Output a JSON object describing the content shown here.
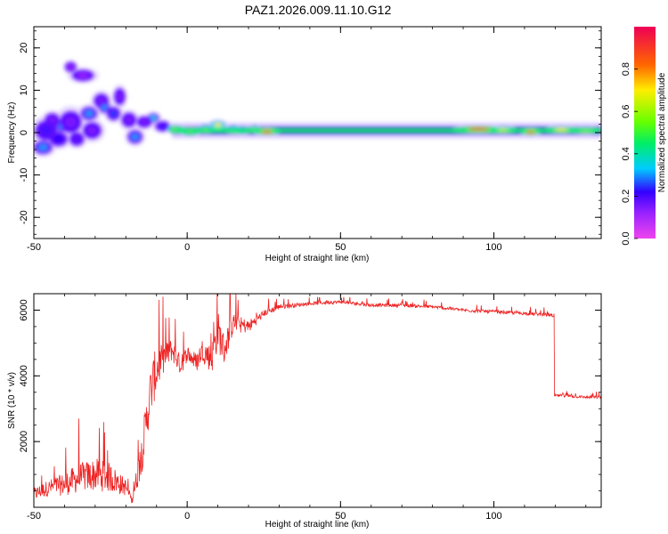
{
  "title": "PAZ1.2026.009.11.10.G12",
  "chart_data": [
    {
      "type": "heatmap",
      "xlabel": "Height of straight line (km)",
      "ylabel": "Frequency (Hz)",
      "xlim": [
        -50,
        135
      ],
      "ylim": [
        -25,
        25
      ],
      "xticks": [
        -50,
        0,
        50,
        100
      ],
      "yticks": [
        20,
        10,
        0,
        -10,
        -20
      ],
      "colorbar": {
        "label": "Normalized spectral amplitude",
        "range": [
          0,
          1
        ],
        "ticks": [
          "0.0",
          "0.2",
          "0.4",
          "0.6",
          "0.8"
        ],
        "colors": [
          "#ee44ee",
          "#5500ff",
          "#00ccff",
          "#00ee66",
          "#aaff00",
          "#ffee00",
          "#ff5500",
          "#ee0055"
        ]
      },
      "blobs": [
        {
          "x": -47,
          "y": -3.5,
          "rx": 2.5,
          "ry": 1.2,
          "a": 0.3
        },
        {
          "x": -46,
          "y": 0.5,
          "rx": 3,
          "ry": 1.8,
          "a": 0.2
        },
        {
          "x": -44,
          "y": 3,
          "rx": 2,
          "ry": 1.2,
          "a": 0.15
        },
        {
          "x": -42,
          "y": -1.5,
          "rx": 2.5,
          "ry": 1.3,
          "a": 0.22
        },
        {
          "x": -41,
          "y": 1.5,
          "rx": 1.5,
          "ry": 1,
          "a": 0.3
        },
        {
          "x": -38,
          "y": 15.5,
          "rx": 1.5,
          "ry": 0.9,
          "a": 0.12
        },
        {
          "x": -34,
          "y": 13.5,
          "rx": 3,
          "ry": 1,
          "a": 0.12
        },
        {
          "x": -38,
          "y": 2.5,
          "rx": 3,
          "ry": 2,
          "a": 0.15
        },
        {
          "x": -36,
          "y": -1.5,
          "rx": 2,
          "ry": 1.2,
          "a": 0.18
        },
        {
          "x": -32,
          "y": 4.5,
          "rx": 2.2,
          "ry": 1.2,
          "a": 0.3
        },
        {
          "x": -31,
          "y": 0.5,
          "rx": 2.5,
          "ry": 1.5,
          "a": 0.15
        },
        {
          "x": -28,
          "y": 7.5,
          "rx": 2,
          "ry": 1.3,
          "a": 0.15
        },
        {
          "x": -27,
          "y": 6,
          "rx": 1.5,
          "ry": 1,
          "a": 0.3
        },
        {
          "x": -24,
          "y": 4.5,
          "rx": 1.8,
          "ry": 1.2,
          "a": 0.25
        },
        {
          "x": -22,
          "y": 8.5,
          "rx": 1.5,
          "ry": 1.5,
          "a": 0.15
        },
        {
          "x": -19,
          "y": 3,
          "rx": 2,
          "ry": 1.3,
          "a": 0.15
        },
        {
          "x": -17,
          "y": -1,
          "rx": 2,
          "ry": 1.2,
          "a": 0.3
        },
        {
          "x": -14,
          "y": 2.5,
          "rx": 2,
          "ry": 1,
          "a": 0.15
        },
        {
          "x": -11,
          "y": 3.5,
          "rx": 1.5,
          "ry": 0.8,
          "a": 0.35
        },
        {
          "x": -8,
          "y": 1.5,
          "rx": 2,
          "ry": 0.9,
          "a": 0.2
        },
        {
          "x": -4,
          "y": 0.8,
          "rx": 2,
          "ry": 0.6,
          "a": 0.8
        },
        {
          "x": 1,
          "y": 0.2,
          "rx": 2,
          "ry": 0.6,
          "a": 0.8
        },
        {
          "x": 6,
          "y": 1,
          "rx": 1.5,
          "ry": 0.6,
          "a": 0.6
        },
        {
          "x": 10,
          "y": 1.8,
          "rx": 2,
          "ry": 0.7,
          "a": 0.7
        },
        {
          "x": 15,
          "y": 0.8,
          "rx": 1.5,
          "ry": 0.6,
          "a": 0.6
        },
        {
          "x": 18,
          "y": 0.6,
          "rx": 1.5,
          "ry": 0.6,
          "a": 0.5
        },
        {
          "x": 22,
          "y": 1,
          "rx": 1,
          "ry": 0.5,
          "a": 0.6
        },
        {
          "x": 26,
          "y": 0.2,
          "rx": 2.5,
          "ry": 0.5,
          "a": 0.9
        },
        {
          "x": 95,
          "y": 0.8,
          "rx": 5,
          "ry": 0.5,
          "a": 0.95
        },
        {
          "x": 103,
          "y": 0.8,
          "rx": 2.5,
          "ry": 0.5,
          "a": 0.65
        },
        {
          "x": 112,
          "y": 0.1,
          "rx": 2,
          "ry": 0.5,
          "a": 0.85
        },
        {
          "x": 122,
          "y": 0.8,
          "rx": 3,
          "ry": 0.5,
          "a": 0.7
        },
        {
          "x": 130,
          "y": 0.6,
          "rx": 2.5,
          "ry": 0.5,
          "a": 0.55
        }
      ],
      "band": {
        "x0": -5,
        "x1": 135,
        "y": 0.5,
        "halfwidth": 1.2,
        "a": 0.45
      }
    },
    {
      "type": "line",
      "xlabel": "Height of straight line (km)",
      "ylabel": "SNR (10 * v/v)",
      "xlim": [
        -50,
        135
      ],
      "ylim": [
        0,
        6500
      ],
      "xticks": [
        -50,
        0,
        50,
        100
      ],
      "yticks": [
        2000,
        4000,
        6000
      ],
      "color": "#ee2222",
      "x": [
        -50,
        -45,
        -40,
        -35,
        -30,
        -25,
        -20,
        -18,
        -15,
        -12,
        -10,
        -8,
        -5,
        -2,
        0,
        3,
        5,
        8,
        10,
        12,
        15,
        20,
        25,
        30,
        35,
        40,
        50,
        60,
        70,
        80,
        90,
        100,
        110,
        119,
        120,
        122,
        130,
        135
      ],
      "y": [
        400,
        600,
        700,
        900,
        1000,
        900,
        600,
        200,
        1500,
        3500,
        4200,
        4500,
        4800,
        4300,
        4700,
        4400,
        4800,
        4500,
        5400,
        4800,
        5600,
        5500,
        5900,
        6100,
        6150,
        6200,
        6250,
        6150,
        6150,
        6100,
        6000,
        5950,
        5900,
        5850,
        3400,
        3400,
        3350,
        3350
      ],
      "noise": [
        400,
        500,
        700,
        900,
        1000,
        900,
        500,
        200,
        1200,
        1500,
        1500,
        900,
        700,
        600,
        500,
        600,
        700,
        900,
        1200,
        1000,
        600,
        400,
        200,
        150,
        120,
        100,
        100,
        100,
        100,
        100,
        100,
        100,
        100,
        100,
        80,
        80,
        80,
        80
      ]
    }
  ]
}
